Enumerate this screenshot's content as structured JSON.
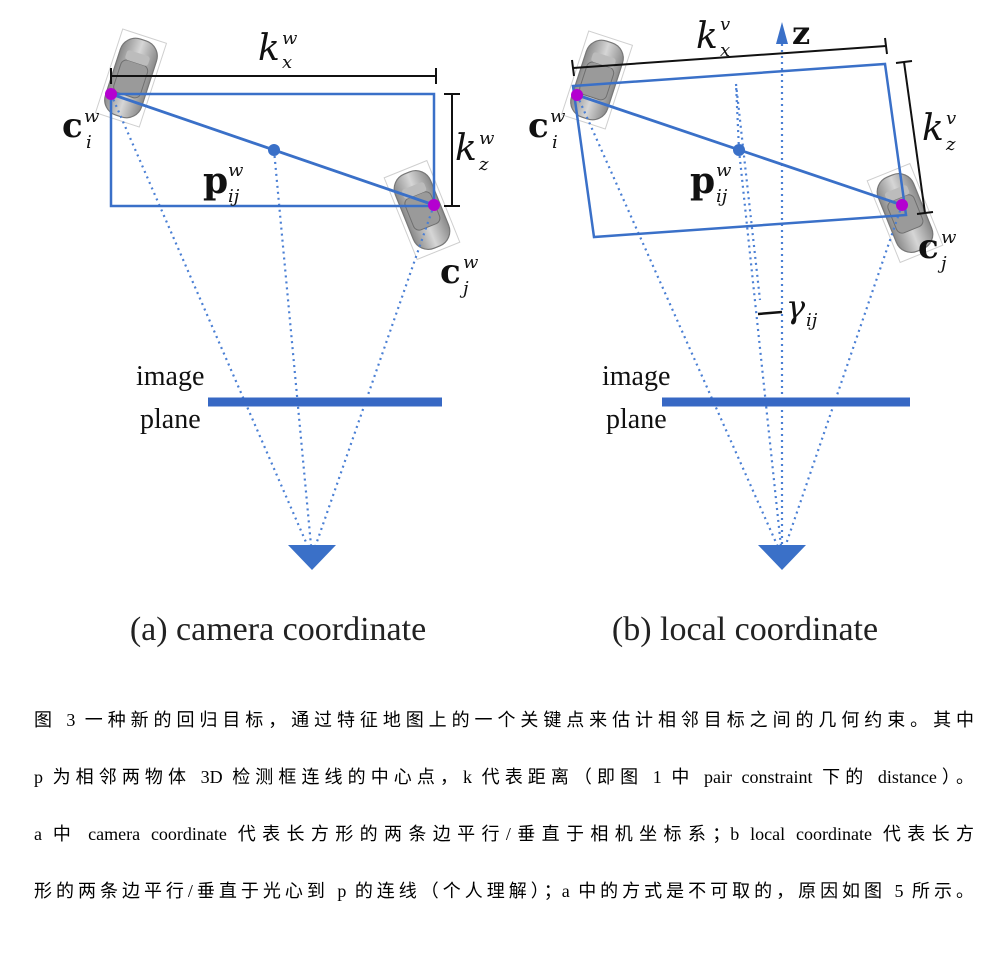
{
  "figure": {
    "panel_a": {
      "caption": "(a) camera coordinate",
      "kx": "k",
      "kx_sup": "w",
      "kx_sub": "x",
      "kz": "k",
      "kz_sup": "w",
      "kz_sub": "z",
      "ci": "c",
      "ci_sup": "w",
      "ci_sub": "i",
      "cj": "c",
      "cj_sup": "w",
      "cj_sub": "j",
      "p": "p",
      "p_sup": "w",
      "p_sub": "ij",
      "image_label": "image",
      "plane_label": "plane"
    },
    "panel_b": {
      "caption": "(b) local coordinate",
      "kx": "k",
      "kx_sup": "v",
      "kx_sub": "x",
      "kz": "k",
      "kz_sup": "v",
      "kz_sub": "z",
      "ci": "c",
      "ci_sup": "w",
      "ci_sub": "i",
      "cj": "c",
      "cj_sup": "w",
      "cj_sub": "j",
      "p": "p",
      "p_sup": "w",
      "p_sub": "ij",
      "z_axis": "z",
      "gamma": "γ",
      "gamma_sub": "ij",
      "image_label": "image",
      "plane_label": "plane"
    },
    "colors": {
      "box_blue": "#3a70c8",
      "ray_blue": "#4a7fd4",
      "center_magenta": "#b400d0",
      "plane_blue": "#3768c4"
    }
  },
  "caption_lines": [
    "图 3 一种新的回归目标，通过特征地图上的一个关键点来估计相邻目标之间的几何约束。其中",
    "p 为相邻两物体 3D 检测框连线的中心点，k 代表距离（即图 1 中 pair constraint 下的 distance）。",
    "a 中 camera coordinate 代表长方形的两条边平行/垂直于相机坐标系；b local coordinate 代表长方",
    "形的两条边平行/垂直于光心到 p 的连线（个人理解）；a 中的方式是不可取的，原因如图 5 所示。"
  ]
}
